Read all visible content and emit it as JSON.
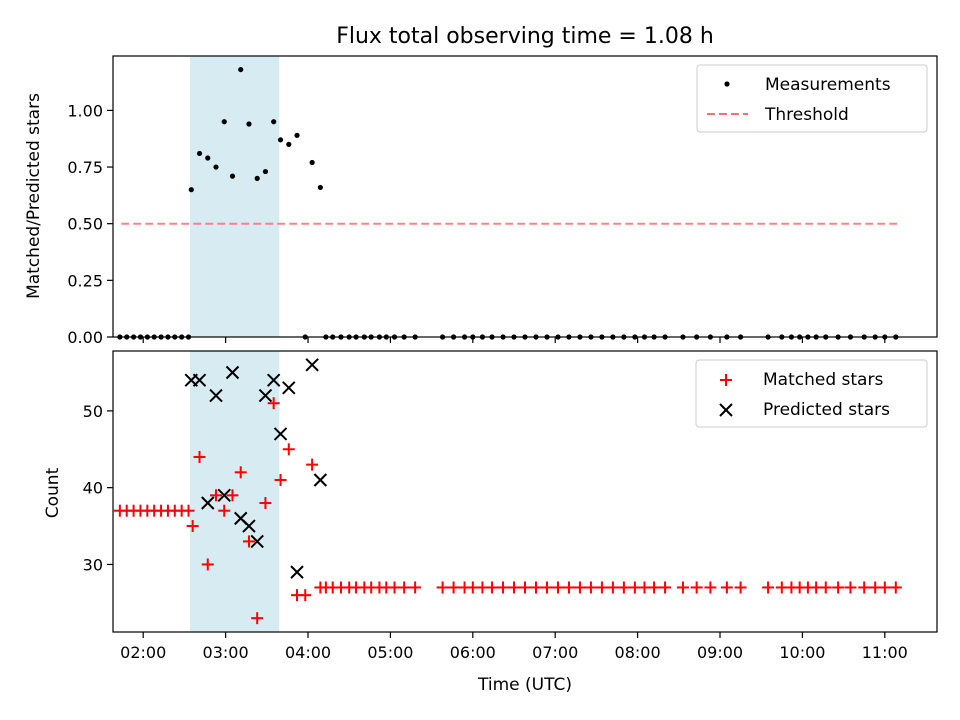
{
  "chart_data": [
    {
      "type": "scatter",
      "title": "Flux total observing time = 1.08 h",
      "ylabel": "Matched/Predicted stars",
      "xlabel": "",
      "xlim": [
        "01:38",
        "11:38"
      ],
      "ylim": [
        0,
        1.24
      ],
      "yticks": [
        "0.00",
        "0.25",
        "0.50",
        "0.75",
        "1.00"
      ],
      "yticks_values": [
        0,
        0.25,
        0.5,
        0.75,
        1.0
      ],
      "xticks": [
        "02:00",
        "03:00",
        "04:00",
        "05:00",
        "06:00",
        "07:00",
        "08:00",
        "09:00",
        "10:00",
        "11:00"
      ],
      "xtick_labels_visible": false,
      "grid": false,
      "legend_position": "top-right",
      "legend": [
        "Measurements",
        "Threshold"
      ],
      "highlight_span": {
        "from": "02:34",
        "to": "03:39",
        "color": "#add8e6"
      },
      "threshold": {
        "value": 0.5,
        "from": "01:44",
        "to": "11:10",
        "color": "#ff7070",
        "style": "dashed"
      },
      "series": [
        {
          "name": "Measurements",
          "marker": "dot",
          "color": "#000000",
          "points": [
            [
              "01:43",
              0
            ],
            [
              "01:48",
              0
            ],
            [
              "01:53",
              0
            ],
            [
              "01:58",
              0
            ],
            [
              "02:03",
              0
            ],
            [
              "02:08",
              0
            ],
            [
              "02:13",
              0
            ],
            [
              "02:18",
              0
            ],
            [
              "02:23",
              0
            ],
            [
              "02:28",
              0
            ],
            [
              "02:33",
              0
            ],
            [
              "02:35",
              0.65
            ],
            [
              "02:41",
              0.81
            ],
            [
              "02:47",
              0.79
            ],
            [
              "02:53",
              0.75
            ],
            [
              "02:59",
              0.95
            ],
            [
              "03:05",
              0.71
            ],
            [
              "03:11",
              1.18
            ],
            [
              "03:17",
              0.94
            ],
            [
              "03:23",
              0.7
            ],
            [
              "03:29",
              0.73
            ],
            [
              "03:35",
              0.95
            ],
            [
              "03:40",
              0.87
            ],
            [
              "03:46",
              0.85
            ],
            [
              "03:52",
              0.89
            ],
            [
              "04:03",
              0.77
            ],
            [
              "04:09",
              0.66
            ],
            [
              "03:58",
              0
            ],
            [
              "04:13",
              0
            ],
            [
              "04:18",
              0
            ],
            [
              "04:24",
              0
            ],
            [
              "04:30",
              0
            ],
            [
              "04:35",
              0
            ],
            [
              "04:41",
              0
            ],
            [
              "04:46",
              0
            ],
            [
              "04:52",
              0
            ],
            [
              "04:57",
              0
            ],
            [
              "05:03",
              0
            ],
            [
              "05:10",
              0
            ],
            [
              "05:18",
              0
            ],
            [
              "05:38",
              0
            ],
            [
              "05:46",
              0
            ],
            [
              "05:54",
              0
            ],
            [
              "06:00",
              0
            ],
            [
              "06:07",
              0
            ],
            [
              "06:14",
              0
            ],
            [
              "06:22",
              0
            ],
            [
              "06:30",
              0
            ],
            [
              "06:38",
              0
            ],
            [
              "06:46",
              0
            ],
            [
              "06:54",
              0
            ],
            [
              "07:02",
              0
            ],
            [
              "07:10",
              0
            ],
            [
              "07:18",
              0
            ],
            [
              "07:26",
              0
            ],
            [
              "07:34",
              0
            ],
            [
              "07:42",
              0
            ],
            [
              "07:50",
              0
            ],
            [
              "07:58",
              0
            ],
            [
              "08:05",
              0
            ],
            [
              "08:12",
              0
            ],
            [
              "08:20",
              0
            ],
            [
              "08:33",
              0
            ],
            [
              "08:43",
              0
            ],
            [
              "08:53",
              0
            ],
            [
              "09:05",
              0
            ],
            [
              "09:15",
              0
            ],
            [
              "09:35",
              0
            ],
            [
              "09:45",
              0
            ],
            [
              "09:52",
              0
            ],
            [
              "09:58",
              0
            ],
            [
              "10:04",
              0
            ],
            [
              "10:10",
              0
            ],
            [
              "10:17",
              0
            ],
            [
              "10:26",
              0
            ],
            [
              "10:35",
              0
            ],
            [
              "10:45",
              0
            ],
            [
              "10:53",
              0
            ],
            [
              "11:00",
              0
            ],
            [
              "11:08",
              0
            ]
          ]
        }
      ]
    },
    {
      "type": "scatter",
      "title": "",
      "ylabel": "Count",
      "xlabel": "Time (UTC)",
      "xlim": [
        "01:38",
        "11:38"
      ],
      "ylim": [
        21.2,
        57.8
      ],
      "yticks": [
        "30",
        "40",
        "50"
      ],
      "yticks_values": [
        30,
        40,
        50
      ],
      "xticks": [
        "02:00",
        "03:00",
        "04:00",
        "05:00",
        "06:00",
        "07:00",
        "08:00",
        "09:00",
        "10:00",
        "11:00"
      ],
      "grid": false,
      "legend_position": "top-right",
      "legend": [
        "Matched stars",
        "Predicted stars"
      ],
      "highlight_span": {
        "from": "02:34",
        "to": "03:39",
        "color": "#add8e6"
      },
      "series": [
        {
          "name": "Matched stars",
          "marker": "plus",
          "color": "#ff0000",
          "points": [
            [
              "01:43",
              37
            ],
            [
              "01:48",
              37
            ],
            [
              "01:53",
              37
            ],
            [
              "01:58",
              37
            ],
            [
              "02:03",
              37
            ],
            [
              "02:08",
              37
            ],
            [
              "02:13",
              37
            ],
            [
              "02:18",
              37
            ],
            [
              "02:23",
              37
            ],
            [
              "02:28",
              37
            ],
            [
              "02:33",
              37
            ],
            [
              "02:36",
              35
            ],
            [
              "02:41",
              44
            ],
            [
              "02:47",
              30
            ],
            [
              "02:53",
              39
            ],
            [
              "02:59",
              37
            ],
            [
              "03:05",
              39
            ],
            [
              "03:11",
              42
            ],
            [
              "03:17",
              33
            ],
            [
              "03:23",
              23
            ],
            [
              "03:29",
              38
            ],
            [
              "03:35",
              51
            ],
            [
              "03:40",
              41
            ],
            [
              "03:46",
              45
            ],
            [
              "03:52",
              26
            ],
            [
              "03:58",
              26
            ],
            [
              "04:03",
              43
            ],
            [
              "04:09",
              27
            ],
            [
              "04:13",
              27
            ],
            [
              "04:18",
              27
            ],
            [
              "04:24",
              27
            ],
            [
              "04:30",
              27
            ],
            [
              "04:35",
              27
            ],
            [
              "04:41",
              27
            ],
            [
              "04:46",
              27
            ],
            [
              "04:52",
              27
            ],
            [
              "04:57",
              27
            ],
            [
              "05:03",
              27
            ],
            [
              "05:10",
              27
            ],
            [
              "05:18",
              27
            ],
            [
              "05:38",
              27
            ],
            [
              "05:46",
              27
            ],
            [
              "05:54",
              27
            ],
            [
              "06:00",
              27
            ],
            [
              "06:07",
              27
            ],
            [
              "06:14",
              27
            ],
            [
              "06:22",
              27
            ],
            [
              "06:30",
              27
            ],
            [
              "06:38",
              27
            ],
            [
              "06:46",
              27
            ],
            [
              "06:54",
              27
            ],
            [
              "07:02",
              27
            ],
            [
              "07:10",
              27
            ],
            [
              "07:18",
              27
            ],
            [
              "07:26",
              27
            ],
            [
              "07:34",
              27
            ],
            [
              "07:42",
              27
            ],
            [
              "07:50",
              27
            ],
            [
              "07:58",
              27
            ],
            [
              "08:05",
              27
            ],
            [
              "08:12",
              27
            ],
            [
              "08:20",
              27
            ],
            [
              "08:33",
              27
            ],
            [
              "08:43",
              27
            ],
            [
              "08:53",
              27
            ],
            [
              "09:05",
              27
            ],
            [
              "09:15",
              27
            ],
            [
              "09:35",
              27
            ],
            [
              "09:45",
              27
            ],
            [
              "09:52",
              27
            ],
            [
              "09:58",
              27
            ],
            [
              "10:04",
              27
            ],
            [
              "10:10",
              27
            ],
            [
              "10:17",
              27
            ],
            [
              "10:26",
              27
            ],
            [
              "10:35",
              27
            ],
            [
              "10:45",
              27
            ],
            [
              "10:53",
              27
            ],
            [
              "11:00",
              27
            ],
            [
              "11:08",
              27
            ]
          ]
        },
        {
          "name": "Predicted stars",
          "marker": "x",
          "color": "#000000",
          "points": [
            [
              "02:35",
              54
            ],
            [
              "02:41",
              54
            ],
            [
              "02:47",
              38
            ],
            [
              "02:53",
              52
            ],
            [
              "02:59",
              39
            ],
            [
              "03:05",
              55
            ],
            [
              "03:11",
              36
            ],
            [
              "03:17",
              35
            ],
            [
              "03:23",
              33
            ],
            [
              "03:29",
              52
            ],
            [
              "03:35",
              54
            ],
            [
              "03:40",
              47
            ],
            [
              "03:46",
              53
            ],
            [
              "03:52",
              29
            ],
            [
              "04:03",
              56
            ],
            [
              "04:09",
              41
            ]
          ]
        }
      ]
    }
  ]
}
